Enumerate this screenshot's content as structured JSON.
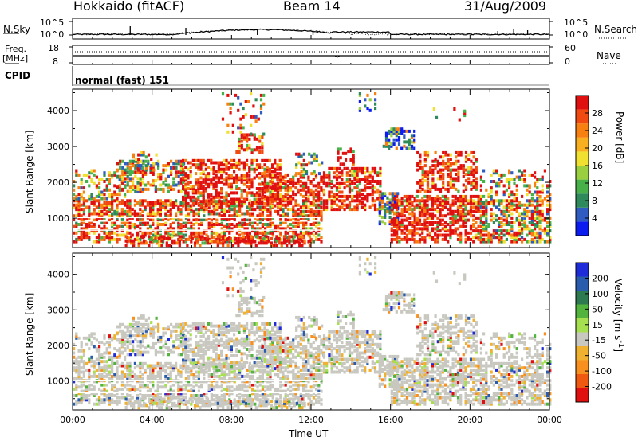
{
  "header": {
    "station": "Hokkaido (fitACF)",
    "beam": "Beam 14",
    "date": "31/Aug/2009"
  },
  "noise_panel": {
    "left_label": "N.Sky",
    "right_label": "N.Search",
    "left_ticks": [
      "10^5",
      "10^0"
    ],
    "right_ticks": [
      "10^5",
      "10^0"
    ]
  },
  "freq_panel": {
    "left_label_line1": "Freq.",
    "left_label_line2": "[MHz]",
    "left_ticks": [
      "18",
      "8"
    ],
    "right_label": "Nave",
    "right_ticks": [
      "60",
      "0"
    ]
  },
  "cpid_panel": {
    "label": "CPID",
    "mode_text": "normal (fast) 151"
  },
  "x_axis": {
    "ticks": [
      "00:00",
      "04:00",
      "08:00",
      "12:00",
      "16:00",
      "20:00",
      "00:00"
    ],
    "label": "Time UT"
  },
  "chart_data": [
    {
      "type": "heatmap",
      "quantity": "Power",
      "ylabel": "Slant Range [km]",
      "y_ticks": [
        1000,
        2000,
        3000,
        4000
      ],
      "ylim": [
        180,
        4600
      ],
      "xlim_hours": [
        0,
        24
      ],
      "colorbar": {
        "label": "Power [dB]",
        "ticks": [
          "4",
          "8",
          "12",
          "16",
          "20",
          "24",
          "28"
        ],
        "colors": [
          "#0a1cf0",
          "#2f5cc0",
          "#2e8a5a",
          "#48b048",
          "#9ad040",
          "#f0e030",
          "#f8b020",
          "#f88010",
          "#f04a10",
          "#e01010"
        ]
      }
    },
    {
      "type": "heatmap",
      "quantity": "Velocity",
      "ylabel": "Slant Range [km]",
      "y_ticks": [
        1000,
        2000,
        3000,
        4000
      ],
      "ylim": [
        180,
        4600
      ],
      "xlim_hours": [
        0,
        24
      ],
      "colorbar": {
        "label": "Velocity [m s^-1]",
        "ticks": [
          "200",
          "100",
          "50",
          "15",
          "-15",
          "-50",
          "-100",
          "-200"
        ],
        "colors": [
          "#1e2bd8",
          "#2a5cae",
          "#2e7a50",
          "#52b43c",
          "#a6e050",
          "#c8c8c0",
          "#f0b030",
          "#f89020",
          "#f05a10",
          "#e01010"
        ]
      }
    }
  ]
}
